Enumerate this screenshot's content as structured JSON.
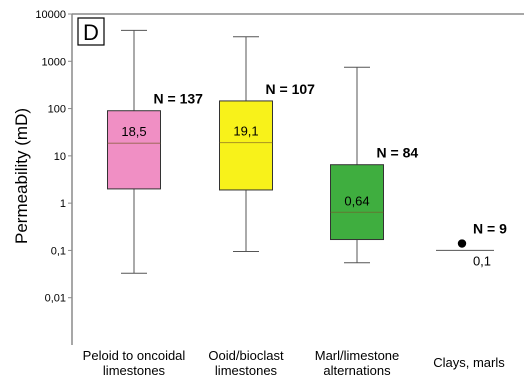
{
  "chart_data": {
    "type": "box",
    "panel_label": "D",
    "ylabel": "Permeability (mD)",
    "yscale": "log",
    "ylim": [
      0.001,
      10000
    ],
    "yticks": [
      {
        "value": 10000,
        "label": "10000"
      },
      {
        "value": 1000,
        "label": "1000"
      },
      {
        "value": 100,
        "label": "100"
      },
      {
        "value": 10,
        "label": "10"
      },
      {
        "value": 1,
        "label": "1"
      },
      {
        "value": 0.1,
        "label": "0,1"
      },
      {
        "value": 0.01,
        "label": "0,01"
      }
    ],
    "grid": false,
    "categories": [
      {
        "lines": [
          "Peloid to oncoidal",
          "limestones"
        ],
        "whisker_low": 0.033,
        "q1": 2.0,
        "median": 18.5,
        "q3": 90,
        "whisker_high": 4500,
        "median_label": "18,5",
        "n_label": "N = 137",
        "color": "#f08fc4"
      },
      {
        "lines": [
          "Ooid/bioclast",
          "limestones"
        ],
        "whisker_low": 0.095,
        "q1": 1.9,
        "median": 19.1,
        "q3": 145,
        "whisker_high": 3300,
        "median_label": "19,1",
        "n_label": "N = 107",
        "color": "#f8f21a"
      },
      {
        "lines": [
          "Marl/limestone",
          "alternations"
        ],
        "whisker_low": 0.055,
        "q1": 0.17,
        "median": 0.64,
        "q3": 6.5,
        "whisker_high": 750,
        "median_label": "0,64",
        "n_label": "N = 84",
        "color": "#3fae3f"
      },
      {
        "lines": [
          "Clays, marls"
        ],
        "point": 0.14,
        "median": 0.1,
        "median_label": "0,1",
        "n_label": "N = 9",
        "color": "#000000"
      }
    ]
  }
}
